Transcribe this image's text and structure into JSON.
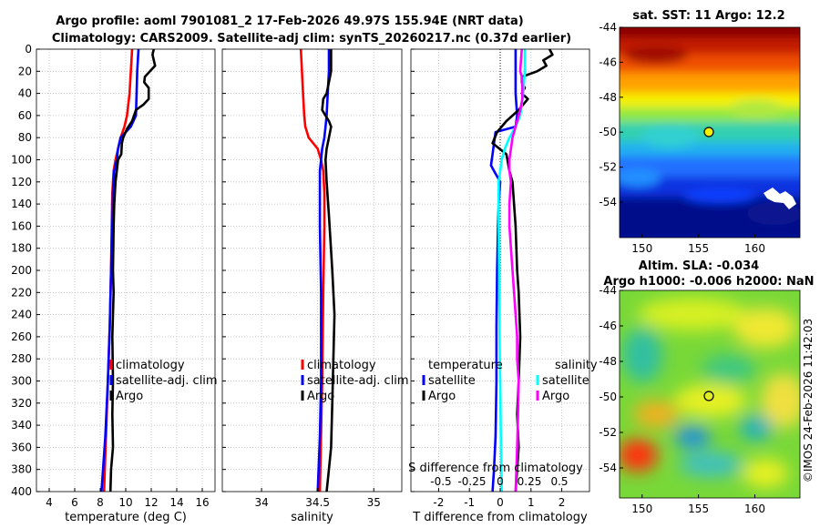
{
  "title_line1": "Argo profile: aoml 7901081_2 17-Feb-2026 49.97S 155.94E (NRT data)",
  "title_line2": "Climatology: CARS2009. Satellite-adj clim: synTS_20260217.nc (0.37d earlier)",
  "copyright": "©IMOS 24-Feb-2026 11:42:03",
  "colors": {
    "climatology": "#ff0000",
    "satellite": "#0000ff",
    "argo": "#000000",
    "cyan": "#00ffff",
    "magenta": "#ff00ff"
  },
  "chart_data": [
    {
      "id": "temperature",
      "type": "line",
      "xlabel": "temperature (deg C)",
      "xlim": [
        3,
        17
      ],
      "ylim": [
        0,
        400
      ],
      "xticks": [
        4,
        6,
        8,
        10,
        12,
        14,
        16
      ],
      "yticks": [
        0,
        20,
        40,
        60,
        80,
        100,
        120,
        140,
        160,
        180,
        200,
        220,
        240,
        260,
        280,
        300,
        320,
        340,
        360,
        380,
        400
      ],
      "legend": [
        "climatology",
        "satellite-adj. clim",
        "Argo"
      ],
      "series": [
        {
          "name": "climatology",
          "color": "#ff0000",
          "x": [
            10.5,
            10.4,
            10.3,
            10.1,
            9.9,
            9.6,
            9.4,
            9.2,
            9.05,
            8.95,
            8.9,
            8.85,
            8.75,
            8.6,
            8.45,
            8.3
          ],
          "y": [
            0,
            20,
            40,
            60,
            70,
            80,
            90,
            100,
            110,
            130,
            160,
            200,
            250,
            300,
            350,
            400
          ]
        },
        {
          "name": "satellite-adj. clim",
          "color": "#0000ff",
          "x": [
            11.0,
            10.9,
            10.85,
            10.8,
            10.4,
            9.6,
            9.4,
            9.3,
            9.1,
            9.0,
            8.95,
            8.85,
            8.75,
            8.6,
            8.4,
            8.1
          ],
          "y": [
            0,
            20,
            40,
            60,
            70,
            80,
            90,
            100,
            110,
            130,
            160,
            200,
            250,
            300,
            350,
            400
          ]
        },
        {
          "name": "Argo",
          "color": "#000000",
          "x": [
            12.2,
            12.1,
            12.3,
            11.9,
            11.5,
            11.45,
            11.8,
            11.8,
            11.4,
            10.8,
            10.5,
            10.1,
            9.8,
            9.7,
            9.65,
            9.4,
            9.3,
            9.2,
            9.1,
            9.05,
            9.0,
            9.05,
            8.95,
            9.0,
            8.95,
            9.0,
            8.85,
            8.8
          ],
          "y": [
            0,
            5,
            15,
            20,
            25,
            30,
            35,
            45,
            50,
            55,
            65,
            72,
            80,
            85,
            95,
            100,
            110,
            120,
            140,
            160,
            200,
            220,
            260,
            300,
            330,
            360,
            380,
            400
          ]
        }
      ]
    },
    {
      "id": "salinity",
      "type": "line",
      "xlabel": "salinity",
      "xlim": [
        33.65,
        35.25
      ],
      "ylim": [
        0,
        400
      ],
      "xticks": [
        34,
        34.5,
        35
      ],
      "legend": [
        "climatology",
        "satellite-adj. clim",
        "Argo"
      ],
      "series": [
        {
          "name": "climatology",
          "color": "#ff0000",
          "x": [
            34.35,
            34.36,
            34.37,
            34.38,
            34.39,
            34.42,
            34.5,
            34.53,
            34.55,
            34.56,
            34.56,
            34.55,
            34.54,
            34.52
          ],
          "y": [
            0,
            20,
            40,
            60,
            70,
            80,
            90,
            100,
            110,
            130,
            160,
            220,
            300,
            400
          ]
        },
        {
          "name": "satellite-adj. clim",
          "color": "#0000ff",
          "x": [
            34.6,
            34.6,
            34.59,
            34.58,
            34.57,
            34.56,
            34.54,
            34.53,
            34.52,
            34.52,
            34.52,
            34.53,
            34.53,
            34.52,
            34.5
          ],
          "y": [
            0,
            20,
            40,
            60,
            70,
            80,
            90,
            100,
            110,
            130,
            160,
            220,
            300,
            350,
            400
          ]
        },
        {
          "name": "Argo",
          "color": "#000000",
          "x": [
            34.62,
            34.62,
            34.6,
            34.58,
            34.55,
            34.54,
            34.57,
            34.6,
            34.62,
            34.6,
            34.58,
            34.57,
            34.58,
            34.6,
            34.63,
            34.65,
            34.64,
            34.63,
            34.62,
            34.6,
            34.58
          ],
          "y": [
            0,
            20,
            30,
            40,
            45,
            55,
            60,
            65,
            70,
            80,
            90,
            100,
            120,
            150,
            200,
            240,
            280,
            320,
            360,
            380,
            400
          ]
        }
      ]
    },
    {
      "id": "difference",
      "type": "line",
      "xlabel": "T difference from climatology",
      "xlim": [
        -2.9,
        2.9
      ],
      "ylim": [
        0,
        400
      ],
      "xticks": [
        -2,
        -1,
        0,
        1,
        2
      ],
      "secondary_axis_label": "S difference from climatology",
      "secondary_ticks": [
        "-0.5",
        "-0.25",
        "0",
        "0.25",
        "0.5"
      ],
      "legend_temperature_title": "temperature",
      "legend_salinity_title": "salinity",
      "legend_temperature": [
        "satellite",
        "Argo"
      ],
      "legend_salinity": [
        "satellite",
        "Argo"
      ],
      "zero_line": true,
      "series": [
        {
          "name": "T satellite",
          "color": "#0000ff",
          "x": [
            0.5,
            0.5,
            0.5,
            0.55,
            0.5,
            -0.15,
            -0.2,
            -0.25,
            -0.3,
            -0.2,
            0.0,
            -0.05,
            -0.07,
            -0.1,
            -0.12,
            -0.12,
            -0.15,
            -0.2,
            -0.25
          ],
          "y": [
            0,
            20,
            40,
            60,
            70,
            75,
            85,
            95,
            105,
            110,
            120,
            140,
            160,
            200,
            250,
            300,
            350,
            380,
            400
          ]
        },
        {
          "name": "T Argo",
          "color": "#000000",
          "x": [
            1.6,
            1.7,
            1.4,
            1.5,
            1.2,
            0.7,
            0.7,
            0.8,
            0.7,
            0.9,
            0.6,
            0.2,
            -0.1,
            -0.25,
            0.2,
            0.3,
            0.4,
            0.45,
            0.5,
            0.55,
            0.6,
            0.65,
            0.6,
            0.55,
            0.6,
            0.55,
            0.5
          ],
          "y": [
            0,
            5,
            10,
            15,
            20,
            25,
            30,
            35,
            40,
            45,
            55,
            65,
            75,
            85,
            95,
            110,
            120,
            140,
            160,
            200,
            220,
            260,
            300,
            330,
            360,
            380,
            400
          ]
        },
        {
          "name": "S satellite",
          "color": "#00ffff",
          "x": [
            0.8,
            0.8,
            0.75,
            0.7,
            0.65,
            0.5,
            0.3,
            0.15,
            0.05,
            0.0,
            -0.05,
            -0.05,
            -0.04,
            -0.03,
            -0.02,
            0.0,
            0.02,
            0.05
          ],
          "y": [
            0,
            20,
            40,
            50,
            60,
            70,
            80,
            90,
            100,
            110,
            120,
            140,
            180,
            220,
            260,
            300,
            350,
            400
          ]
        },
        {
          "name": "S Argo",
          "color": "#ff00ff",
          "x": [
            0.7,
            0.65,
            0.7,
            0.72,
            0.72,
            0.65,
            0.6,
            0.55,
            0.4,
            0.3,
            0.3,
            0.35,
            0.3,
            0.3,
            0.4,
            0.5,
            0.55,
            0.55,
            0.6,
            0.58,
            0.55,
            0.5
          ],
          "y": [
            0,
            20,
            25,
            35,
            45,
            55,
            60,
            65,
            80,
            100,
            110,
            120,
            140,
            160,
            200,
            240,
            260,
            280,
            300,
            330,
            360,
            400
          ]
        }
      ]
    },
    {
      "id": "sst_map",
      "type": "heatmap",
      "title": "sat. SST: 11 Argo: 12.2",
      "xlim": [
        148,
        164
      ],
      "ylim": [
        -56,
        -44
      ],
      "xticks": [
        150,
        155,
        160
      ],
      "yticks": [
        -44,
        -46,
        -48,
        -50,
        -52,
        -54
      ],
      "marker": {
        "lon": 155.94,
        "lat": -49.97,
        "label": "Argo"
      }
    },
    {
      "id": "sla_map",
      "type": "heatmap",
      "title": "Altim. SLA: -0.034",
      "subtitle": "Argo h1000: -0.006 h2000: NaN",
      "xlim": [
        148,
        164
      ],
      "ylim": [
        -56,
        -44
      ],
      "xticks": [
        150,
        155,
        160
      ],
      "yticks": [
        -44,
        -46,
        -48,
        -50,
        -52,
        -54
      ],
      "marker": {
        "lon": 155.94,
        "lat": -49.97,
        "label": "Argo"
      }
    }
  ]
}
